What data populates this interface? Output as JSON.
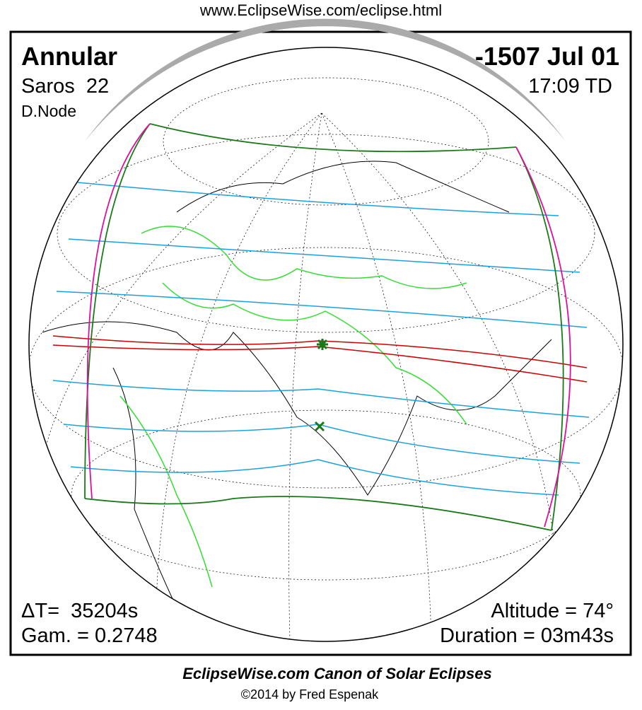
{
  "header": {
    "url": "www.EclipseWise.com/eclipse.html"
  },
  "panel": {
    "type": "Annular",
    "saros": "Saros  22",
    "node": "D.Node",
    "date": "-1507 Jul 01",
    "time": "17:09 TD",
    "delta_t": "ΔT=  35204s",
    "gamma": "Gam. = 0.2748",
    "altitude": "Altitude = 74°",
    "duration": "Duration = 03m43s"
  },
  "footer": {
    "title": "EclipseWise.com Canon of Solar Eclipses",
    "credit": "©2014 by Fred Espenak"
  }
}
